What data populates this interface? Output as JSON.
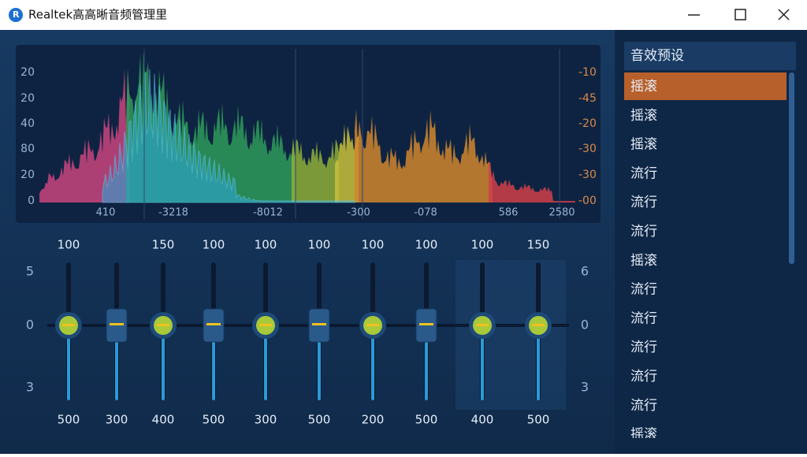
{
  "window": {
    "title": "Realtek高高晰音频管理里"
  },
  "spectrum": {
    "left_labels": [
      "20",
      "20",
      "40",
      "80",
      "20",
      "0"
    ],
    "right_labels": [
      "-10",
      "-45",
      "-20",
      "-30",
      "-30",
      "-00"
    ],
    "x_labels": [
      "410",
      "-3218",
      "-8012",
      "-300",
      "-078",
      "586",
      "2580"
    ]
  },
  "equalizer": {
    "left_scale": [
      "5",
      "0",
      "3"
    ],
    "right_scale": [
      "6",
      "0",
      "3"
    ],
    "bands": [
      {
        "top": "100",
        "bottom": "500",
        "knob": "round"
      },
      {
        "bottom": "300",
        "knob": "square"
      },
      {
        "top": "150",
        "bottom": "400",
        "knob": "round"
      },
      {
        "top": "100",
        "bottom": "500",
        "knob": "square"
      },
      {
        "top": "100",
        "bottom": "300",
        "knob": "round"
      },
      {
        "top": "100",
        "bottom": "500",
        "knob": "square"
      },
      {
        "top": "100",
        "bottom": "200",
        "knob": "round"
      },
      {
        "top": "100",
        "bottom": "500",
        "knob": "square"
      },
      {
        "top": "100",
        "bottom": "400",
        "knob": "round"
      },
      {
        "top": "150",
        "bottom": "500",
        "knob": "round"
      }
    ]
  },
  "presets": {
    "header": "音效预设",
    "selected": 0,
    "items": [
      "摇滚",
      "摇滚",
      "摇滚",
      "流行",
      "流行",
      "流行",
      "摇滚",
      "流行",
      "流行",
      "流行",
      "流行",
      "流行",
      "摇滚"
    ]
  }
}
